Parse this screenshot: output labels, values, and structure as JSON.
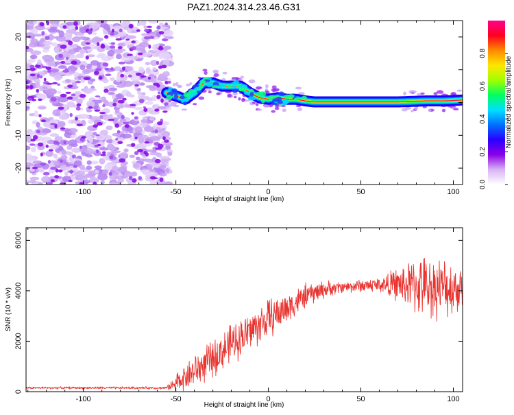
{
  "figure_title": "PAZ1.2024.314.23.46.G31",
  "chart_data": [
    {
      "type": "heatmap",
      "xlabel": "Height of straight line (km)",
      "ylabel": "Frequency (Hz)",
      "xlim": [
        -131,
        105
      ],
      "ylim": [
        -25,
        25
      ],
      "x_ticks": [
        -100,
        -50,
        0,
        50,
        100
      ],
      "y_ticks": [
        -20,
        -10,
        0,
        10,
        20
      ],
      "noise_region_x": [
        -131,
        -55
      ],
      "signal_region_x": [
        -55,
        105
      ],
      "ridge": {
        "x": [
          -55,
          -50,
          -45,
          -40,
          -35,
          -30,
          -25,
          -20,
          -15,
          -10,
          -5,
          0,
          5,
          10,
          15,
          20,
          25,
          30,
          40,
          50,
          60,
          70,
          75,
          80,
          85,
          90,
          95,
          100,
          105
        ],
        "y": [
          3,
          2,
          1,
          3,
          6,
          6,
          5,
          5,
          5,
          3,
          1.5,
          1,
          1.5,
          1,
          1,
          0.5,
          0.2,
          0.2,
          0.2,
          0.2,
          0.2,
          0.2,
          0.3,
          0.4,
          0.5,
          0.5,
          0.5,
          0.6,
          0.8
        ]
      },
      "colorbar": {
        "label": "Normalized spectral amplitude",
        "range": [
          0,
          1
        ],
        "ticks": [
          "0.0",
          "0.2",
          "0.4",
          "0.6",
          "0.8"
        ],
        "colors": [
          "#ffffff",
          "#d9b3f5",
          "#8a00e6",
          "#2a00ff",
          "#0070ff",
          "#00e0ff",
          "#00ff60",
          "#a0ff00",
          "#ffe600",
          "#ff8a00",
          "#ff0020",
          "#ff0090"
        ]
      }
    },
    {
      "type": "line",
      "xlabel": "Height of straight line (km)",
      "ylabel": "SNR (10 * v/v)",
      "xlim": [
        -131,
        105
      ],
      "ylim": [
        0,
        6500
      ],
      "x_ticks": [
        -100,
        -50,
        0,
        50,
        100
      ],
      "y_ticks": [
        0,
        2000,
        4000,
        6000
      ],
      "color": "#e8332f",
      "envelope": {
        "x": [
          -131,
          -55,
          -52,
          -45,
          -40,
          -30,
          -20,
          -10,
          0,
          10,
          20,
          30,
          40,
          50,
          60,
          70,
          80,
          90,
          100,
          105
        ],
        "y": [
          150,
          150,
          250,
          600,
          800,
          1300,
          1900,
          2400,
          2900,
          3300,
          3800,
          4050,
          4150,
          4200,
          4250,
          4250,
          4200,
          4150,
          4100,
          4150
        ]
      },
      "noise_amplitude": {
        "x": [
          -131,
          -55,
          -50,
          -40,
          -20,
          0,
          20,
          40,
          60,
          70,
          80,
          90,
          100,
          105
        ],
        "y": [
          40,
          40,
          300,
          550,
          650,
          650,
          400,
          180,
          250,
          550,
          950,
          1000,
          900,
          700
        ]
      }
    }
  ]
}
